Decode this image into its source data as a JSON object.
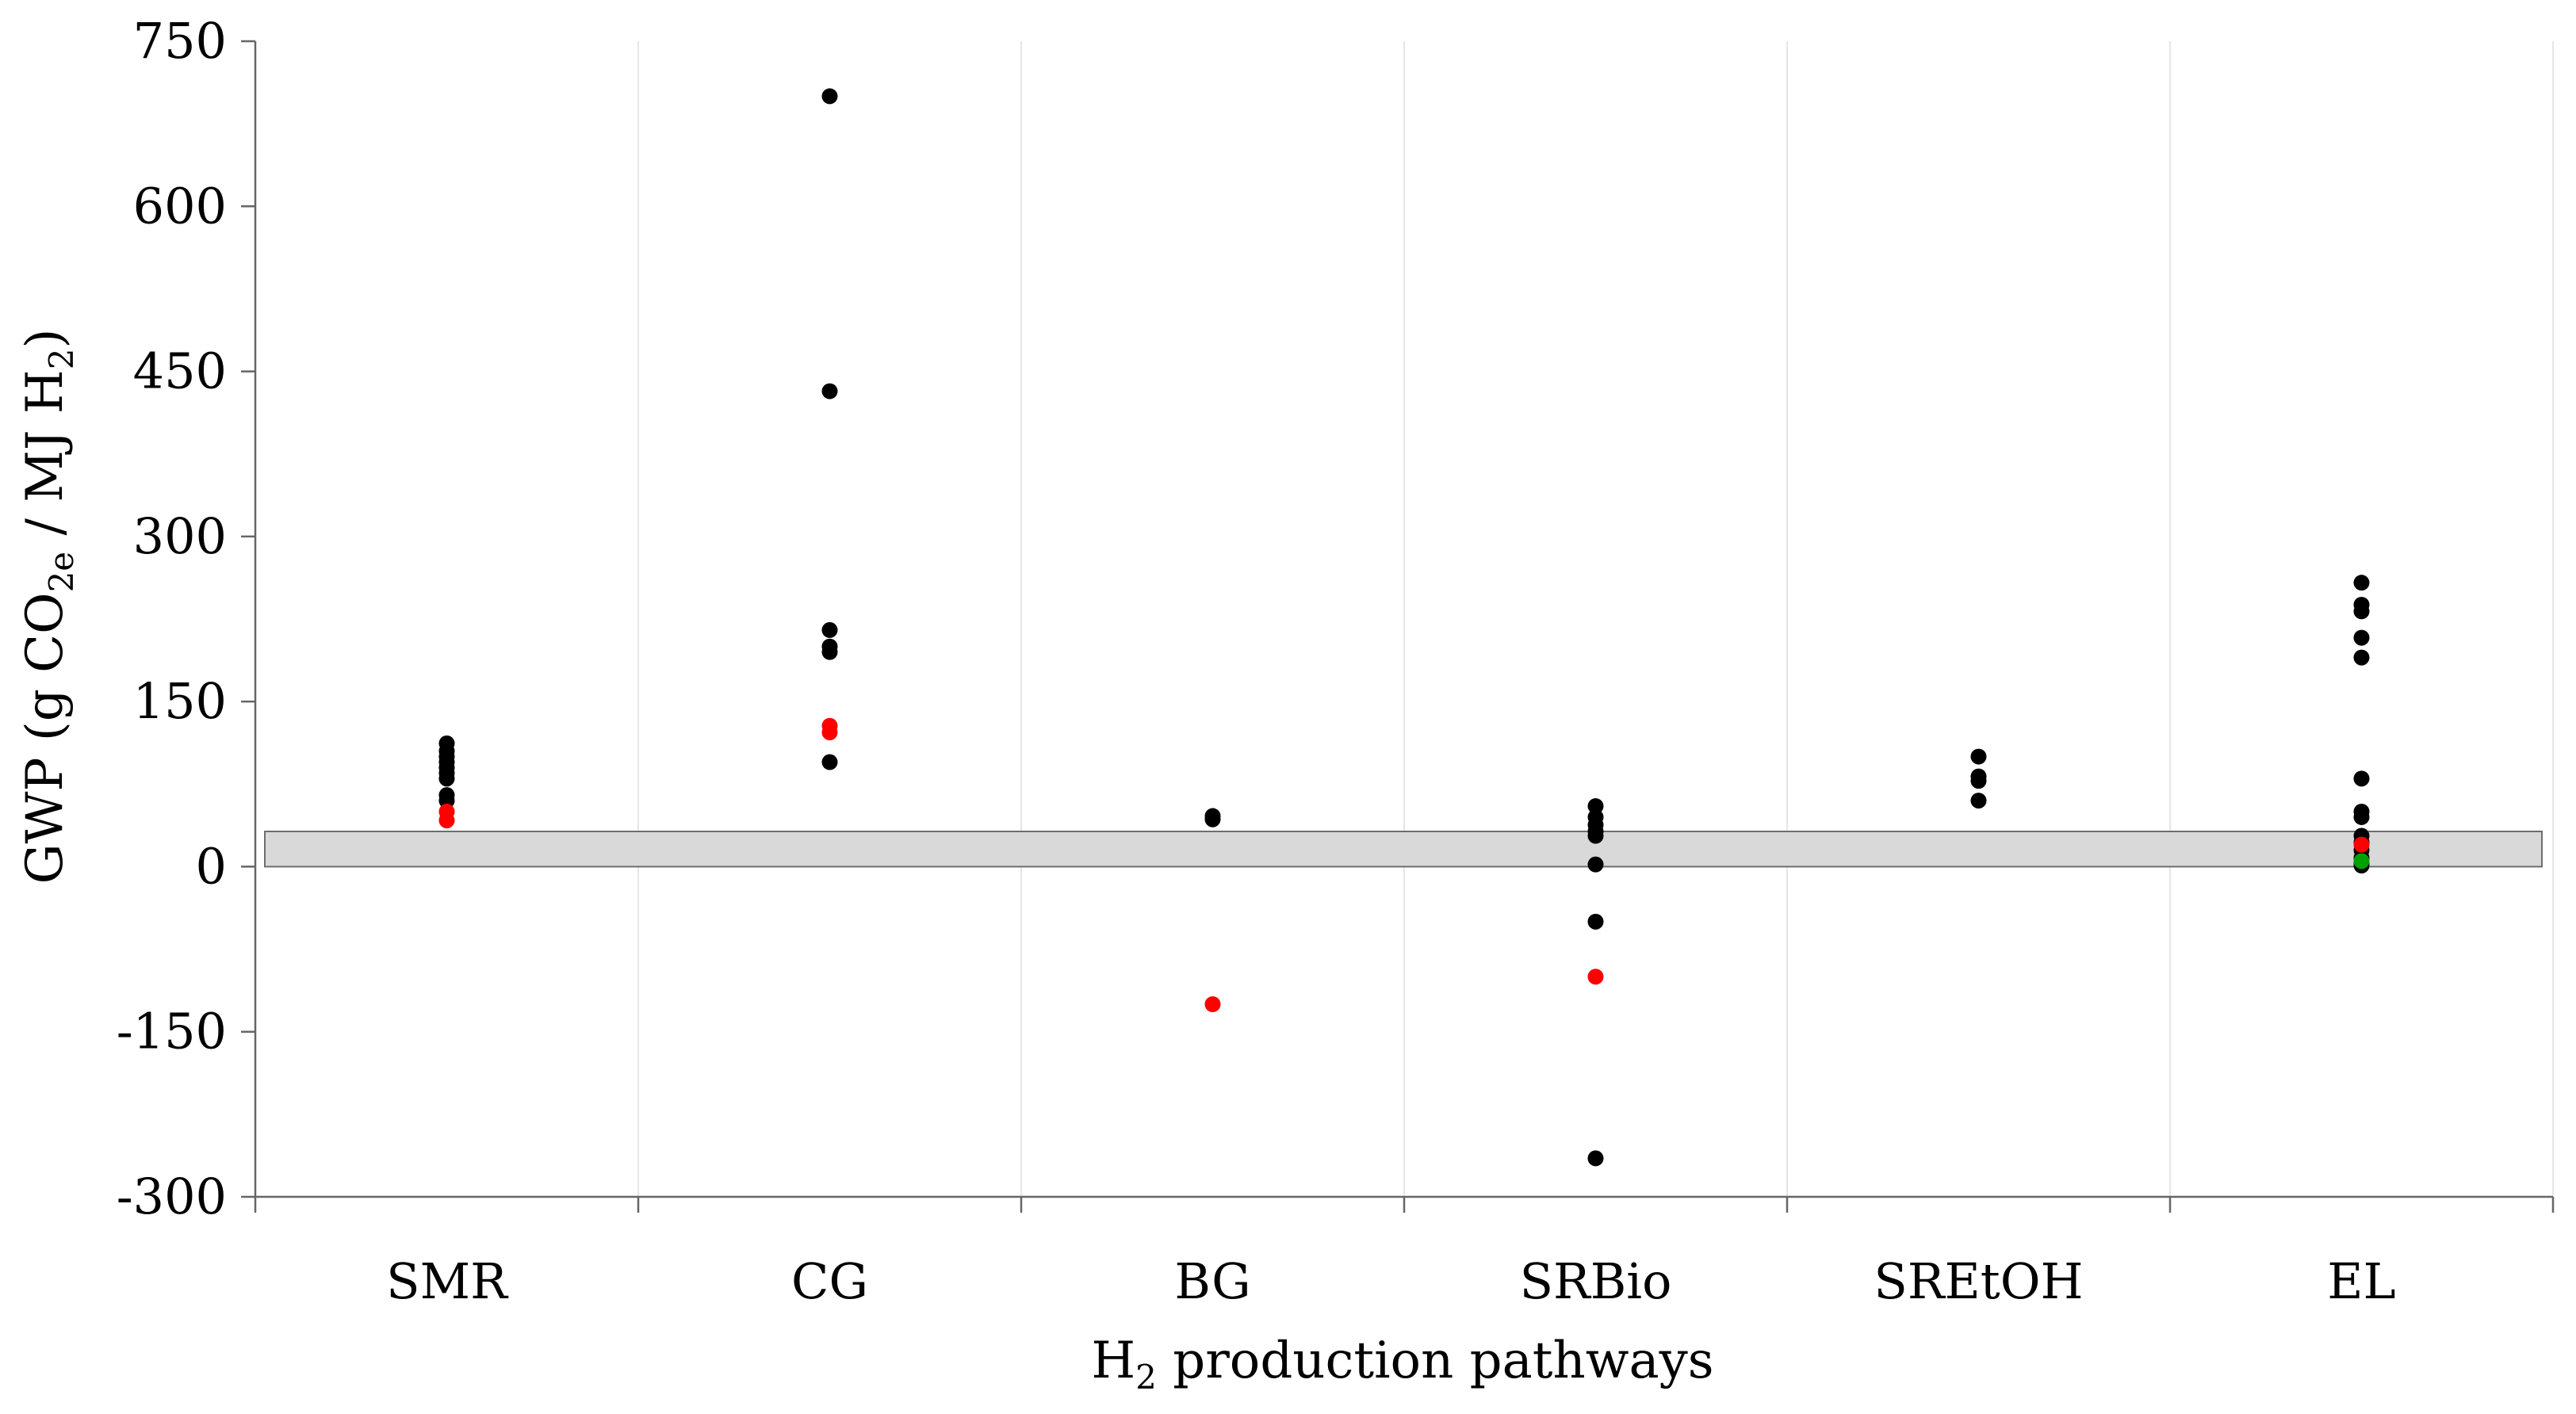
{
  "chart_data": {
    "type": "scatter",
    "title": "",
    "xlabel": {
      "main": "H",
      "sub": "2",
      "rest": " production pathways"
    },
    "ylabel": {
      "p1": "GWP (g CO",
      "s1": "2e",
      "p2": " / MJ H",
      "s2": "2",
      "p3": ")"
    },
    "categories": [
      "SMR",
      "CG",
      "BG",
      "SRBio",
      "SREtOH",
      "EL"
    ],
    "ylim": [
      -300,
      750
    ],
    "yticks": [
      "750",
      "600",
      "450",
      "300",
      "150",
      "0",
      "-150",
      "-300"
    ],
    "ytick_values": [
      750,
      600,
      450,
      300,
      150,
      0,
      -150,
      -300
    ],
    "band": {
      "from": 0,
      "to": 32,
      "color": "#d9d9d9"
    },
    "grid": "vertical",
    "colors": {
      "black": "#000000",
      "red": "#ff0000",
      "green": "#00a000"
    },
    "series": [
      {
        "color": "black",
        "points": [
          [
            "SMR",
            112
          ],
          [
            "SMR",
            105
          ],
          [
            "SMR",
            100
          ],
          [
            "SMR",
            95
          ],
          [
            "SMR",
            90
          ],
          [
            "SMR",
            85
          ],
          [
            "SMR",
            80
          ],
          [
            "SMR",
            65
          ],
          [
            "SMR",
            60
          ],
          [
            "CG",
            700
          ],
          [
            "CG",
            432
          ],
          [
            "CG",
            215
          ],
          [
            "CG",
            200
          ],
          [
            "CG",
            195
          ],
          [
            "CG",
            95
          ],
          [
            "BG",
            46
          ],
          [
            "BG",
            43
          ],
          [
            "SRBio",
            55
          ],
          [
            "SRBio",
            45
          ],
          [
            "SRBio",
            38
          ],
          [
            "SRBio",
            32
          ],
          [
            "SRBio",
            28
          ],
          [
            "SRBio",
            2
          ],
          [
            "SRBio",
            -50
          ],
          [
            "SRBio",
            -265
          ],
          [
            "SREtOH",
            100
          ],
          [
            "SREtOH",
            82
          ],
          [
            "SREtOH",
            78
          ],
          [
            "SREtOH",
            60
          ],
          [
            "EL",
            258
          ],
          [
            "EL",
            238
          ],
          [
            "EL",
            232
          ],
          [
            "EL",
            208
          ],
          [
            "EL",
            190
          ],
          [
            "EL",
            80
          ],
          [
            "EL",
            50
          ],
          [
            "EL",
            45
          ],
          [
            "EL",
            28
          ],
          [
            "EL",
            22
          ],
          [
            "EL",
            15
          ],
          [
            "EL",
            8
          ],
          [
            "EL",
            3
          ],
          [
            "EL",
            1
          ]
        ]
      },
      {
        "color": "red",
        "points": [
          [
            "SMR",
            50
          ],
          [
            "SMR",
            42
          ],
          [
            "CG",
            128
          ],
          [
            "CG",
            122
          ],
          [
            "BG",
            -125
          ],
          [
            "SRBio",
            -100
          ],
          [
            "EL",
            20
          ]
        ]
      },
      {
        "color": "green",
        "points": [
          [
            "EL",
            5
          ]
        ]
      }
    ]
  }
}
